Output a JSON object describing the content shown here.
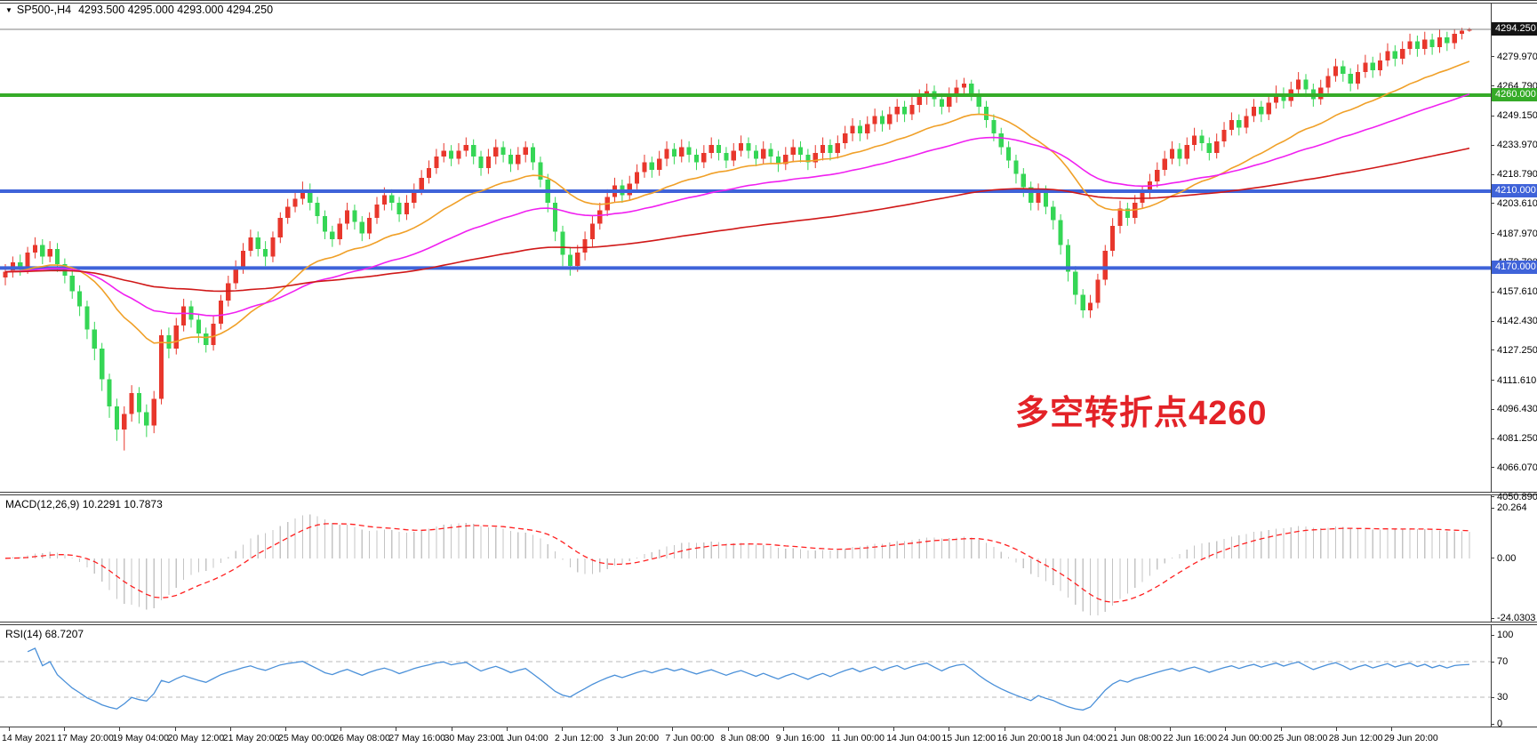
{
  "window": {
    "symbol_timeframe": "SP500-,H4",
    "ohlc": "4293.500 4295.000 4293.000 4294.250"
  },
  "icons": {
    "symbol_dropdown": "▼"
  },
  "annotation": {
    "text": "多空转折点4260",
    "color": "#e32227"
  },
  "price_scale": {
    "current": {
      "label": "4294.250",
      "price": 4294.25,
      "bg": "#141414"
    },
    "ticks": [
      {
        "label": "4279.970",
        "price": 4279.97
      },
      {
        "label": "4264.790",
        "price": 4264.79
      },
      {
        "label": "4249.150",
        "price": 4249.15
      },
      {
        "label": "4233.970",
        "price": 4233.97
      },
      {
        "label": "4218.790",
        "price": 4218.79
      },
      {
        "label": "4203.610",
        "price": 4203.61
      },
      {
        "label": "4187.970",
        "price": 4187.97
      },
      {
        "label": "4172.790",
        "price": 4172.79
      },
      {
        "label": "4157.610",
        "price": 4157.61
      },
      {
        "label": "4142.430",
        "price": 4142.43
      },
      {
        "label": "4127.250",
        "price": 4127.25
      },
      {
        "label": "4111.610",
        "price": 4111.61
      },
      {
        "label": "4096.430",
        "price": 4096.43
      },
      {
        "label": "4081.250",
        "price": 4081.25
      },
      {
        "label": "4066.070",
        "price": 4066.07
      },
      {
        "label": "4050.890",
        "price": 4050.89
      }
    ],
    "level_badges": [
      {
        "label": "4260.000",
        "price": 4260,
        "bg": "#35ab28"
      },
      {
        "label": "4210.000",
        "price": 4210,
        "bg": "#3f63d9"
      },
      {
        "label": "4170.000",
        "price": 4170,
        "bg": "#3f63d9"
      }
    ]
  },
  "levels": [
    {
      "price": 4260,
      "color": "#35ab28",
      "width": 4
    },
    {
      "price": 4210,
      "color": "#3f63d9",
      "width": 4
    },
    {
      "price": 4170,
      "color": "#3f63d9",
      "width": 4
    }
  ],
  "macd_panel": {
    "label": "MACD(12,26,9) 10.2291 10.7873",
    "ticks": [
      {
        "label": "20.264",
        "value": 20.264
      },
      {
        "label": "0.00",
        "value": 0
      },
      {
        "label": "-24.0303",
        "value": -24.0303
      }
    ],
    "value_range": [
      25,
      -25.1
    ],
    "histogram_color": "#c4c4c4",
    "signal_color": "#ff2020"
  },
  "rsi_panel": {
    "label": "RSI(14) 68.7207",
    "ticks": [
      {
        "label": "100",
        "value": 100
      },
      {
        "label": "70",
        "value": 70
      },
      {
        "label": "30",
        "value": 30
      },
      {
        "label": "0",
        "value": 0
      }
    ],
    "levels": [
      70,
      30
    ],
    "line_color": "#4a90d9",
    "level_color": "#b8b8b8"
  },
  "time_axis": {
    "labels": [
      "14 May 2021",
      "17 May 20:00",
      "19 May 04:00",
      "20 May 12:00",
      "21 May 20:00",
      "25 May 00:00",
      "26 May 08:00",
      "27 May 16:00",
      "30 May 23:00",
      "1 Jun 04:00",
      "2 Jun 12:00",
      "3 Jun 20:00",
      "7 Jun 00:00",
      "8 Jun 08:00",
      "9 Jun 16:00",
      "11 Jun 00:00",
      "14 Jun 04:00",
      "15 Jun 12:00",
      "16 Jun 20:00",
      "18 Jun 04:00",
      "21 Jun 08:00",
      "22 Jun 16:00",
      "24 Jun 00:00",
      "25 Jun 08:00",
      "28 Jun 12:00",
      "29 Jun 20:00"
    ]
  },
  "chart_data": {
    "type": "candlestick",
    "symbol": "SP500-",
    "timeframe": "H4",
    "title": "SP500-,H4",
    "last_ohlc": {
      "open": 4293.5,
      "high": 4295.0,
      "low": 4293.0,
      "close": 4294.25
    },
    "ylim": [
      4050.89,
      4308.6
    ],
    "up_color": "#e8372c",
    "down_color": "#35d655",
    "candles_format": "[open,high,low,close]",
    "candles": [
      [
        4165,
        4172,
        4161,
        4168
      ],
      [
        4168,
        4176,
        4165,
        4173
      ],
      [
        4173,
        4177,
        4166,
        4170
      ],
      [
        4170,
        4181,
        4167,
        4178
      ],
      [
        4178,
        4186,
        4175,
        4182
      ],
      [
        4182,
        4185,
        4172,
        4176
      ],
      [
        4176,
        4184,
        4173,
        4180
      ],
      [
        4180,
        4183,
        4168,
        4172
      ],
      [
        4172,
        4175,
        4162,
        4166
      ],
      [
        4166,
        4169,
        4154,
        4158
      ],
      [
        4158,
        4161,
        4145,
        4150
      ],
      [
        4150,
        4153,
        4133,
        4138
      ],
      [
        4138,
        4142,
        4122,
        4128
      ],
      [
        4128,
        4131,
        4106,
        4112
      ],
      [
        4112,
        4115,
        4092,
        4098
      ],
      [
        4098,
        4102,
        4080,
        4086
      ],
      [
        4086,
        4098,
        4075,
        4094
      ],
      [
        4094,
        4109,
        4090,
        4105
      ],
      [
        4105,
        4108,
        4089,
        4095
      ],
      [
        4095,
        4099,
        4082,
        4088
      ],
      [
        4088,
        4106,
        4084,
        4102
      ],
      [
        4102,
        4138,
        4099,
        4135
      ],
      [
        4135,
        4139,
        4123,
        4128
      ],
      [
        4128,
        4144,
        4125,
        4140
      ],
      [
        4140,
        4154,
        4137,
        4150
      ],
      [
        4150,
        4153,
        4139,
        4143
      ],
      [
        4143,
        4146,
        4131,
        4136
      ],
      [
        4136,
        4139,
        4126,
        4130
      ],
      [
        4130,
        4145,
        4127,
        4141
      ],
      [
        4141,
        4156,
        4138,
        4153
      ],
      [
        4153,
        4166,
        4150,
        4162
      ],
      [
        4162,
        4174,
        4159,
        4170
      ],
      [
        4170,
        4183,
        4167,
        4179
      ],
      [
        4179,
        4190,
        4176,
        4186
      ],
      [
        4186,
        4189,
        4176,
        4180
      ],
      [
        4180,
        4184,
        4171,
        4176
      ],
      [
        4176,
        4189,
        4173,
        4186
      ],
      [
        4186,
        4199,
        4183,
        4196
      ],
      [
        4196,
        4206,
        4193,
        4202
      ],
      [
        4202,
        4210,
        4199,
        4206
      ],
      [
        4206,
        4215,
        4203,
        4211
      ],
      [
        4211,
        4214,
        4200,
        4204
      ],
      [
        4204,
        4207,
        4193,
        4197
      ],
      [
        4197,
        4200,
        4185,
        4189
      ],
      [
        4189,
        4192,
        4181,
        4185
      ],
      [
        4185,
        4196,
        4182,
        4193
      ],
      [
        4193,
        4204,
        4190,
        4200
      ],
      [
        4200,
        4203,
        4190,
        4194
      ],
      [
        4194,
        4197,
        4184,
        4188
      ],
      [
        4188,
        4199,
        4185,
        4196
      ],
      [
        4196,
        4207,
        4193,
        4203
      ],
      [
        4203,
        4212,
        4200,
        4208
      ],
      [
        4208,
        4211,
        4200,
        4204
      ],
      [
        4204,
        4207,
        4194,
        4198
      ],
      [
        4198,
        4208,
        4195,
        4204
      ],
      [
        4204,
        4214,
        4201,
        4211
      ],
      [
        4211,
        4221,
        4208,
        4217
      ],
      [
        4217,
        4226,
        4214,
        4222
      ],
      [
        4222,
        4232,
        4219,
        4228
      ],
      [
        4228,
        4235,
        4225,
        4231
      ],
      [
        4231,
        4234,
        4223,
        4227
      ],
      [
        4227,
        4235,
        4224,
        4231
      ],
      [
        4231,
        4238,
        4228,
        4234
      ],
      [
        4234,
        4237,
        4224,
        4228
      ],
      [
        4228,
        4231,
        4218,
        4222
      ],
      [
        4222,
        4232,
        4219,
        4228
      ],
      [
        4228,
        4237,
        4224,
        4233
      ],
      [
        4233,
        4236,
        4225,
        4229
      ],
      [
        4229,
        4232,
        4220,
        4224
      ],
      [
        4224,
        4233,
        4221,
        4229
      ],
      [
        4229,
        4236,
        4225,
        4233
      ],
      [
        4233,
        4235,
        4221,
        4225
      ],
      [
        4225,
        4228,
        4212,
        4216
      ],
      [
        4216,
        4219,
        4199,
        4204
      ],
      [
        4204,
        4207,
        4184,
        4189
      ],
      [
        4189,
        4192,
        4171,
        4177
      ],
      [
        4177,
        4181,
        4166,
        4171
      ],
      [
        4171,
        4182,
        4168,
        4178
      ],
      [
        4178,
        4189,
        4174,
        4185
      ],
      [
        4185,
        4197,
        4181,
        4193
      ],
      [
        4193,
        4204,
        4190,
        4200
      ],
      [
        4200,
        4211,
        4197,
        4207
      ],
      [
        4207,
        4217,
        4204,
        4213
      ],
      [
        4213,
        4216,
        4204,
        4208
      ],
      [
        4208,
        4218,
        4205,
        4214
      ],
      [
        4214,
        4224,
        4211,
        4220
      ],
      [
        4220,
        4229,
        4217,
        4225
      ],
      [
        4225,
        4228,
        4217,
        4221
      ],
      [
        4221,
        4231,
        4218,
        4227
      ],
      [
        4227,
        4236,
        4223,
        4232
      ],
      [
        4232,
        4235,
        4224,
        4228
      ],
      [
        4228,
        4237,
        4225,
        4233
      ],
      [
        4233,
        4236,
        4225,
        4229
      ],
      [
        4229,
        4232,
        4221,
        4225
      ],
      [
        4225,
        4234,
        4222,
        4230
      ],
      [
        4230,
        4238,
        4227,
        4234
      ],
      [
        4234,
        4237,
        4226,
        4230
      ],
      [
        4230,
        4233,
        4222,
        4226
      ],
      [
        4226,
        4235,
        4223,
        4231
      ],
      [
        4231,
        4239,
        4228,
        4235
      ],
      [
        4235,
        4238,
        4227,
        4231
      ],
      [
        4231,
        4234,
        4223,
        4227
      ],
      [
        4227,
        4236,
        4224,
        4232
      ],
      [
        4232,
        4235,
        4224,
        4228
      ],
      [
        4228,
        4231,
        4220,
        4224
      ],
      [
        4224,
        4233,
        4221,
        4229
      ],
      [
        4229,
        4237,
        4225,
        4233
      ],
      [
        4233,
        4236,
        4225,
        4229
      ],
      [
        4229,
        4232,
        4221,
        4225
      ],
      [
        4225,
        4234,
        4222,
        4230
      ],
      [
        4230,
        4238,
        4226,
        4234
      ],
      [
        4234,
        4237,
        4226,
        4230
      ],
      [
        4230,
        4239,
        4227,
        4235
      ],
      [
        4235,
        4244,
        4232,
        4240
      ],
      [
        4240,
        4248,
        4236,
        4244
      ],
      [
        4244,
        4247,
        4236,
        4240
      ],
      [
        4240,
        4249,
        4237,
        4245
      ],
      [
        4245,
        4253,
        4241,
        4249
      ],
      [
        4249,
        4252,
        4241,
        4245
      ],
      [
        4245,
        4254,
        4242,
        4250
      ],
      [
        4250,
        4258,
        4246,
        4254
      ],
      [
        4254,
        4257,
        4246,
        4250
      ],
      [
        4250,
        4259,
        4247,
        4255
      ],
      [
        4255,
        4263,
        4251,
        4259
      ],
      [
        4259,
        4266,
        4255,
        4262
      ],
      [
        4262,
        4265,
        4254,
        4258
      ],
      [
        4258,
        4261,
        4250,
        4254
      ],
      [
        4254,
        4264,
        4251,
        4260
      ],
      [
        4260,
        4268,
        4256,
        4264
      ],
      [
        4264,
        4269,
        4260,
        4266
      ],
      [
        4266,
        4268,
        4257,
        4261
      ],
      [
        4261,
        4263,
        4250,
        4254
      ],
      [
        4254,
        4257,
        4243,
        4247
      ],
      [
        4247,
        4250,
        4236,
        4240
      ],
      [
        4240,
        4243,
        4229,
        4233
      ],
      [
        4233,
        4236,
        4222,
        4226
      ],
      [
        4226,
        4229,
        4214,
        4219
      ],
      [
        4219,
        4222,
        4207,
        4212
      ],
      [
        4212,
        4215,
        4200,
        4204
      ],
      [
        4204,
        4214,
        4200,
        4210
      ],
      [
        4210,
        4213,
        4198,
        4202
      ],
      [
        4202,
        4205,
        4190,
        4195
      ],
      [
        4195,
        4198,
        4177,
        4182
      ],
      [
        4182,
        4185,
        4163,
        4168
      ],
      [
        4168,
        4171,
        4151,
        4156
      ],
      [
        4156,
        4159,
        4144,
        4148
      ],
      [
        4148,
        4156,
        4144,
        4152
      ],
      [
        4152,
        4167,
        4149,
        4164
      ],
      [
        4164,
        4182,
        4161,
        4179
      ],
      [
        4179,
        4196,
        4176,
        4192
      ],
      [
        4192,
        4205,
        4188,
        4201
      ],
      [
        4201,
        4204,
        4192,
        4196
      ],
      [
        4196,
        4208,
        4193,
        4204
      ],
      [
        4204,
        4213,
        4201,
        4209
      ],
      [
        4209,
        4219,
        4206,
        4215
      ],
      [
        4215,
        4225,
        4212,
        4221
      ],
      [
        4221,
        4231,
        4218,
        4227
      ],
      [
        4227,
        4236,
        4224,
        4232
      ],
      [
        4232,
        4235,
        4223,
        4227
      ],
      [
        4227,
        4238,
        4224,
        4234
      ],
      [
        4234,
        4243,
        4231,
        4239
      ],
      [
        4239,
        4242,
        4231,
        4235
      ],
      [
        4235,
        4238,
        4226,
        4230
      ],
      [
        4230,
        4240,
        4227,
        4236
      ],
      [
        4236,
        4246,
        4233,
        4242
      ],
      [
        4242,
        4251,
        4239,
        4247
      ],
      [
        4247,
        4250,
        4239,
        4243
      ],
      [
        4243,
        4253,
        4240,
        4249
      ],
      [
        4249,
        4258,
        4246,
        4254
      ],
      [
        4254,
        4257,
        4246,
        4250
      ],
      [
        4250,
        4260,
        4247,
        4256
      ],
      [
        4256,
        4265,
        4253,
        4261
      ],
      [
        4261,
        4264,
        4253,
        4257
      ],
      [
        4257,
        4267,
        4254,
        4263
      ],
      [
        4263,
        4272,
        4260,
        4268
      ],
      [
        4268,
        4271,
        4259,
        4263
      ],
      [
        4263,
        4266,
        4254,
        4258
      ],
      [
        4258,
        4268,
        4255,
        4264
      ],
      [
        4264,
        4274,
        4261,
        4270
      ],
      [
        4270,
        4279,
        4267,
        4275
      ],
      [
        4275,
        4278,
        4267,
        4271
      ],
      [
        4271,
        4274,
        4262,
        4266
      ],
      [
        4266,
        4276,
        4263,
        4272
      ],
      [
        4272,
        4281,
        4269,
        4277
      ],
      [
        4277,
        4280,
        4269,
        4273
      ],
      [
        4273,
        4282,
        4270,
        4278
      ],
      [
        4278,
        4287,
        4275,
        4283
      ],
      [
        4283,
        4286,
        4275,
        4279
      ],
      [
        4279,
        4288,
        4276,
        4284
      ],
      [
        4284,
        4292,
        4281,
        4288
      ],
      [
        4288,
        4291,
        4280,
        4284
      ],
      [
        4284,
        4293,
        4281,
        4289
      ],
      [
        4289,
        4292,
        4281,
        4285
      ],
      [
        4285,
        4294,
        4282,
        4290
      ],
      [
        4290,
        4293,
        4283,
        4287
      ],
      [
        4287,
        4294.5,
        4284,
        4292
      ],
      [
        4292,
        4295,
        4289,
        4293.5
      ],
      [
        4293.5,
        4295,
        4293,
        4294.25
      ]
    ],
    "overlays": [
      {
        "name": "ma-fast-line",
        "period": 24,
        "color": "#f0a028"
      },
      {
        "name": "ma-mid-line",
        "period": 52,
        "color": "#f020f0"
      },
      {
        "name": "ma-slow-line",
        "period": 150,
        "color": "#d01818"
      }
    ],
    "indicators": [
      {
        "name": "MACD",
        "params": [
          12,
          26,
          9
        ],
        "values": [
          10.2291,
          10.7873
        ]
      },
      {
        "name": "RSI",
        "params": [
          14
        ],
        "values": [
          68.7207
        ]
      }
    ]
  }
}
